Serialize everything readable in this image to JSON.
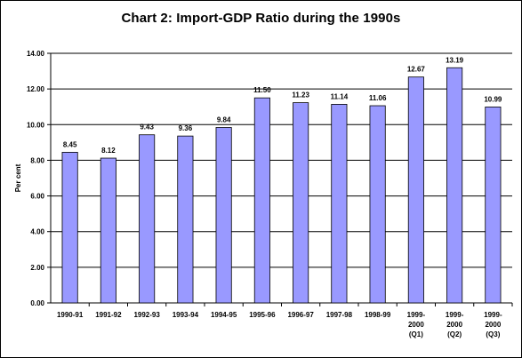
{
  "chart_data": {
    "type": "bar",
    "title": "Chart 2: Import-GDP Ratio during the 1990s",
    "xlabel": "",
    "ylabel": "Per cent",
    "ylim": [
      0,
      14
    ],
    "yticks": [
      "0.00",
      "2.00",
      "4.00",
      "6.00",
      "8.00",
      "10.00",
      "12.00",
      "14.00"
    ],
    "grid": true,
    "legend": "none",
    "categories": [
      [
        "1990-91"
      ],
      [
        "1991-92"
      ],
      [
        "1992-93"
      ],
      [
        "1993-94"
      ],
      [
        "1994-95"
      ],
      [
        "1995-96"
      ],
      [
        "1996-97"
      ],
      [
        "1997-98"
      ],
      [
        "1998-99"
      ],
      [
        "1999-",
        "2000",
        "(Q1)"
      ],
      [
        "1999-",
        "2000",
        "(Q2)"
      ],
      [
        "1999-",
        "2000",
        "(Q3)"
      ]
    ],
    "values": [
      8.45,
      8.12,
      9.43,
      9.36,
      9.84,
      11.5,
      11.23,
      11.14,
      11.06,
      12.67,
      13.19,
      10.99
    ],
    "value_labels": [
      "8.45",
      "8.12",
      "9.43",
      "9.36",
      "9.84",
      "11.50",
      "11.23",
      "11.14",
      "11.06",
      "12.67",
      "13.19",
      "10.99"
    ],
    "colors": {
      "bar_fill": "#9999ff",
      "bar_stroke": "#000000",
      "grid": "#000000",
      "axis": "#000000"
    }
  }
}
